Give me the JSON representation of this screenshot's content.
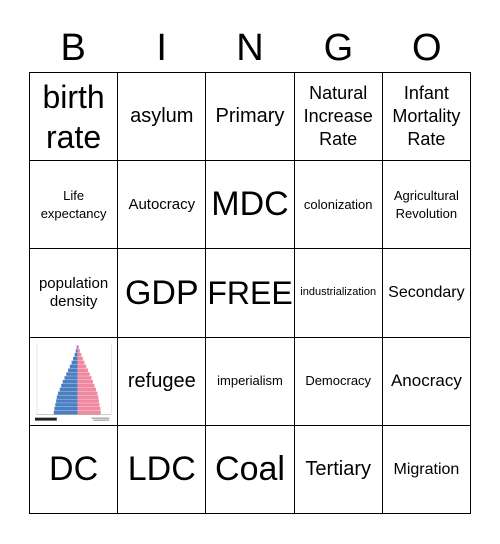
{
  "header": [
    "B",
    "I",
    "N",
    "G",
    "O"
  ],
  "cells": [
    "birth rate",
    "asylum",
    "Primary",
    "Natural Increase Rate",
    "Infant Mortality Rate",
    "Life expectancy",
    "Autocracy",
    "MDC",
    "colonization",
    "Agricultural Revolution",
    "population density",
    "GDP",
    "FREE",
    "industrialization",
    "Secondary",
    "",
    "refugee",
    "imperialism",
    "Democracy",
    "Anocracy",
    "DC",
    "LDC",
    "Coal",
    "Tertiary",
    "Migration"
  ],
  "pyramid": {
    "colors": {
      "male": "#4a7fc1",
      "female": "#f08aa0"
    },
    "male": [
      0.8,
      0.78,
      0.75,
      0.72,
      0.7,
      0.66,
      0.6,
      0.55,
      0.5,
      0.44,
      0.38,
      0.32,
      0.26,
      0.2,
      0.15,
      0.1,
      0.06,
      0.03
    ],
    "female": [
      0.78,
      0.77,
      0.74,
      0.72,
      0.7,
      0.67,
      0.62,
      0.57,
      0.52,
      0.47,
      0.41,
      0.35,
      0.29,
      0.23,
      0.18,
      0.13,
      0.08,
      0.04
    ]
  }
}
